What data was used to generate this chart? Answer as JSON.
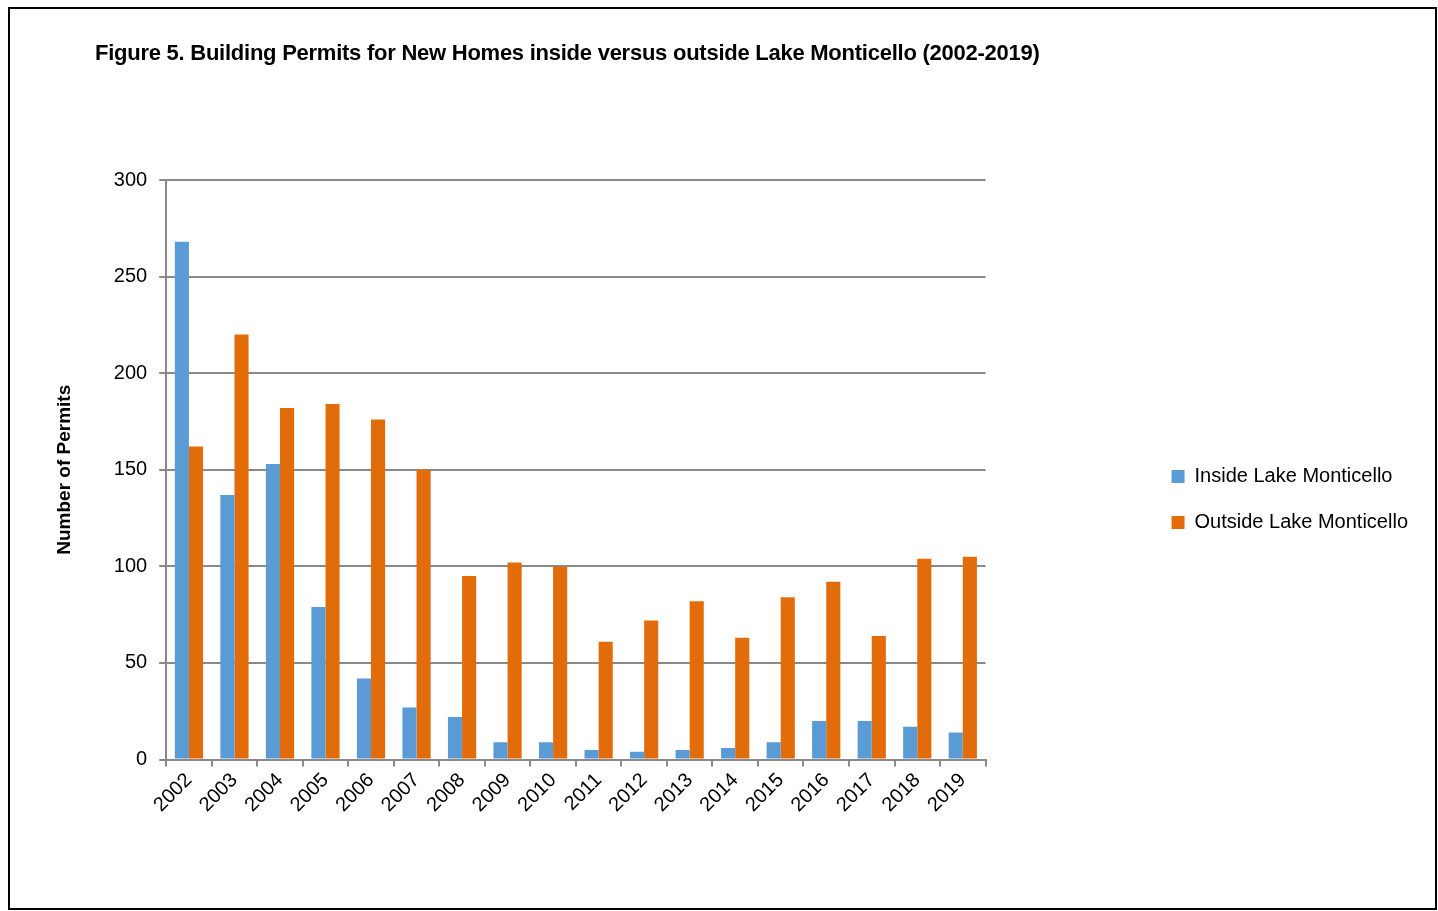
{
  "chart_data": {
    "type": "bar",
    "title": "Figure 5. Building Permits for New Homes inside versus outside Lake Monticello (2002-2019)",
    "ylabel": "Number of Permits",
    "categories": [
      "2002",
      "2003",
      "2004",
      "2005",
      "2006",
      "2007",
      "2008",
      "2009",
      "2010",
      "2011",
      "2012",
      "2013",
      "2014",
      "2015",
      "2016",
      "2017",
      "2018",
      "2019"
    ],
    "series": [
      {
        "name": "Inside Lake Monticello",
        "color": "#5b9bd5",
        "values": [
          268,
          137,
          153,
          79,
          42,
          27,
          22,
          9,
          9,
          5,
          4,
          5,
          6,
          9,
          20,
          20,
          17,
          14
        ]
      },
      {
        "name": "Outside Lake Monticello",
        "color": "#e36c0a",
        "values": [
          162,
          220,
          182,
          184,
          176,
          150,
          95,
          102,
          100,
          61,
          72,
          82,
          63,
          84,
          92,
          64,
          104,
          105
        ]
      }
    ],
    "ylim": [
      0,
      300
    ],
    "yticks": [
      0,
      50,
      100,
      150,
      200,
      250,
      300
    ],
    "grid": "y",
    "legend": "right"
  }
}
